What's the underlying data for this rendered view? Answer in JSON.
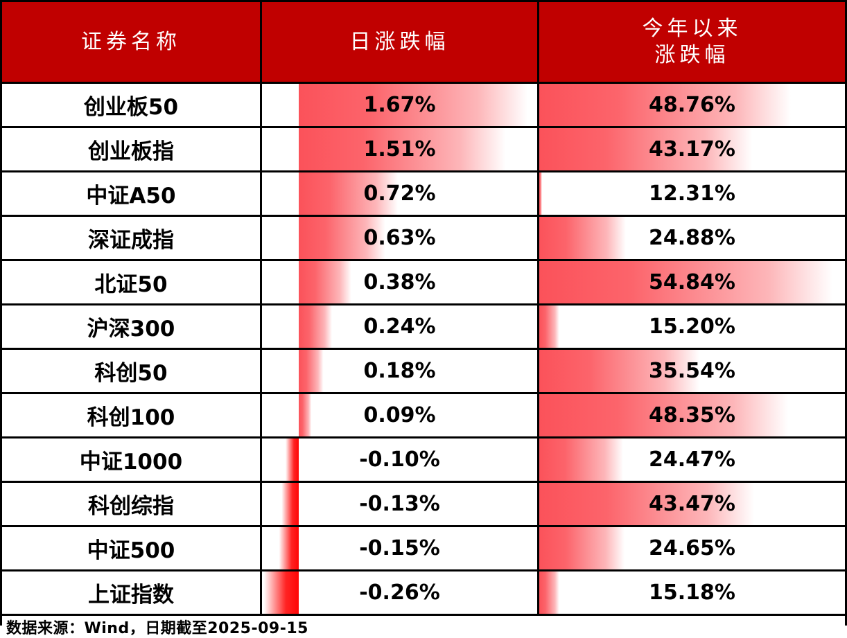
{
  "header": {
    "security_name": "证券名称",
    "daily_change": "日涨跌幅",
    "ytd_line1": "今年以来",
    "ytd_line2": "涨跌幅"
  },
  "footer": {
    "source_note": "数据来源：Wind，日期截至2025-09-15"
  },
  "colors": {
    "header_bg": "#c00000",
    "header_text": "#ffffff",
    "positive_bar": "#fb525a",
    "negative_bar": "#ff0606",
    "border": "#000000"
  },
  "chart_data": {
    "type": "table",
    "title": "",
    "columns": [
      "证券名称",
      "日涨跌幅",
      "今年以来涨跌幅"
    ],
    "rows": [
      {
        "name": "创业板50",
        "daily": 1.67,
        "ytd": 48.76
      },
      {
        "name": "创业板指",
        "daily": 1.51,
        "ytd": 43.17
      },
      {
        "name": "中证A50",
        "daily": 0.72,
        "ytd": 12.31
      },
      {
        "name": "深证成指",
        "daily": 0.63,
        "ytd": 24.88
      },
      {
        "name": "北证50",
        "daily": 0.38,
        "ytd": 54.84
      },
      {
        "name": "沪深300",
        "daily": 0.24,
        "ytd": 15.2
      },
      {
        "name": "科创50",
        "daily": 0.18,
        "ytd": 35.54
      },
      {
        "name": "科创100",
        "daily": 0.09,
        "ytd": 48.35
      },
      {
        "name": "中证1000",
        "daily": -0.1,
        "ytd": 24.47
      },
      {
        "name": "科创综指",
        "daily": -0.13,
        "ytd": 43.47
      },
      {
        "name": "中证500",
        "daily": -0.15,
        "ytd": 24.65
      },
      {
        "name": "上证指数",
        "daily": -0.26,
        "ytd": 15.18
      }
    ],
    "daily_axis": {
      "min": -0.26,
      "max": 1.67
    },
    "ytd_axis": {
      "min": 12.31,
      "max": 54.84
    },
    "value_format": "percent_2dp",
    "bar_style": "gradient_databar",
    "layout": "excel_table_with_databars"
  }
}
